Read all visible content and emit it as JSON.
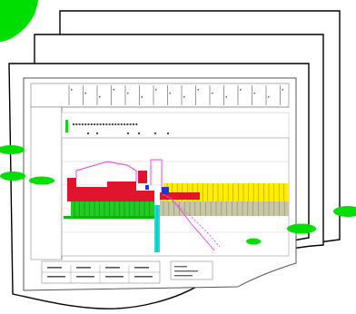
{
  "scene": {
    "name": "stacked-document-pages-with-chart",
    "accent_colors": {
      "leaf_green": "#00dd00",
      "chart_red": "#e0142b",
      "chart_magenta": "#e040e0",
      "chart_yellow": "#ffee00",
      "chart_green": "#22cc22",
      "chart_cyan": "#22dddd",
      "chart_blue": "#2233dd",
      "chart_olive": "#b8b890"
    },
    "icons": [
      "green-leaf-icon",
      "green-blob-icon"
    ]
  }
}
